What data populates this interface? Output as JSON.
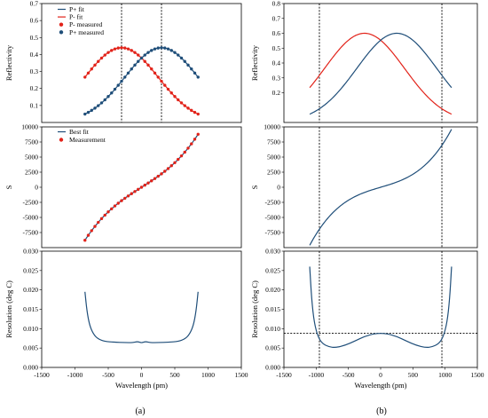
{
  "colors": {
    "blue": "#1F4E79",
    "red": "#E2231A",
    "frame": "#000000"
  },
  "captions": {
    "a": "(a)",
    "b": "(b)"
  },
  "xlabel": "Wavelength (pm)",
  "chart_data": [
    {
      "id": "a1",
      "type": "line",
      "column": "a",
      "row": 0,
      "ylabel": "Reflectivity",
      "xlim": [
        -1500,
        1500
      ],
      "ylim": [
        0,
        0.7
      ],
      "yticks": [
        "0.1",
        "0.2",
        "0.3",
        "0.4",
        "0.5",
        "0.6",
        "0.7"
      ],
      "xticks": [],
      "vlines": [
        -300,
        300
      ],
      "hline": null,
      "legend": [
        "P+ fit",
        "P- fit",
        "P- measured",
        "P+ measured"
      ],
      "series": [
        {
          "name": "P+ fit",
          "color": "blue",
          "kind": "gauss",
          "x_range": [
            -850,
            850
          ],
          "peak": 0.44,
          "center": 300,
          "width": 550
        },
        {
          "name": "P- fit",
          "color": "red",
          "kind": "gauss",
          "x_range": [
            -850,
            850
          ],
          "peak": 0.44,
          "center": -300,
          "width": 550
        },
        {
          "name": "P- measured",
          "color": "red",
          "kind": "gauss",
          "markers": true,
          "x_range": [
            -850,
            850
          ],
          "peak": 0.44,
          "center": -300,
          "width": 550
        },
        {
          "name": "P+ measured",
          "color": "blue",
          "kind": "gauss",
          "markers": true,
          "x_range": [
            -850,
            850
          ],
          "peak": 0.44,
          "center": 300,
          "width": 550
        }
      ]
    },
    {
      "id": "a2",
      "type": "line",
      "column": "a",
      "row": 1,
      "ylabel": "S",
      "xlim": [
        -1500,
        1500
      ],
      "ylim": [
        -10000,
        10000
      ],
      "yticks": [
        "-7500",
        "-5000",
        "-2500",
        "0",
        "2500",
        "5000",
        "7500",
        "10000"
      ],
      "xticks": [],
      "vlines": [],
      "hline": null,
      "legend": [
        "Best fit",
        "Measurement"
      ],
      "series": [
        {
          "name": "Best fit",
          "color": "blue",
          "kind": "cubic",
          "x_range": [
            -850,
            850
          ],
          "a": 7.0,
          "b": 4.61e-06
        },
        {
          "name": "Measurement",
          "color": "red",
          "kind": "cubic",
          "markers": true,
          "x_range": [
            -850,
            850
          ],
          "a": 7.0,
          "b": 4.61e-06
        }
      ]
    },
    {
      "id": "a3",
      "type": "line",
      "column": "a",
      "row": 2,
      "ylabel": "Resolution (deg C)",
      "xlim": [
        -1500,
        1500
      ],
      "ylim": [
        0,
        0.03
      ],
      "yticks": [
        "0.000",
        "0.005",
        "0.010",
        "0.015",
        "0.020",
        "0.025",
        "0.030"
      ],
      "xticks": [
        "-1500",
        "-1000",
        "-500",
        "0",
        "500",
        "1000",
        "1500"
      ],
      "vlines": [],
      "hline": null,
      "legend": [],
      "series": [
        {
          "color": "blue",
          "kind": "points",
          "points": [
            [
              -850,
              0.0195
            ],
            [
              -820,
              0.0145
            ],
            [
              -780,
              0.0108
            ],
            [
              -720,
              0.0085
            ],
            [
              -650,
              0.0073
            ],
            [
              -550,
              0.0067
            ],
            [
              -400,
              0.0065
            ],
            [
              -250,
              0.0064
            ],
            [
              -130,
              0.0064
            ],
            [
              -60,
              0.0067
            ],
            [
              0,
              0.0063
            ],
            [
              60,
              0.0067
            ],
            [
              130,
              0.0064
            ],
            [
              250,
              0.0064
            ],
            [
              400,
              0.0065
            ],
            [
              550,
              0.0067
            ],
            [
              650,
              0.0073
            ],
            [
              720,
              0.0085
            ],
            [
              780,
              0.0108
            ],
            [
              820,
              0.0145
            ],
            [
              850,
              0.0195
            ]
          ]
        }
      ]
    },
    {
      "id": "b1",
      "type": "line",
      "column": "b",
      "row": 0,
      "ylabel": "Reflectivity",
      "xlim": [
        -1500,
        1500
      ],
      "ylim": [
        0,
        0.8
      ],
      "yticks": [
        "0.2",
        "0.3",
        "0.4",
        "0.5",
        "0.6",
        "0.7",
        "0.8"
      ],
      "xticks": [],
      "vlines": [
        -950,
        950
      ],
      "hline": null,
      "legend": [],
      "series": [
        {
          "color": "red",
          "kind": "gauss",
          "x_range": [
            -1100,
            1100
          ],
          "peak": 0.6,
          "center": -250,
          "width": 620
        },
        {
          "color": "blue",
          "kind": "gauss",
          "x_range": [
            -1100,
            1100
          ],
          "peak": 0.6,
          "center": 250,
          "width": 620
        }
      ]
    },
    {
      "id": "b2",
      "type": "line",
      "column": "b",
      "row": 1,
      "ylabel": "S",
      "xlim": [
        -1500,
        1500
      ],
      "ylim": [
        -10000,
        10000
      ],
      "yticks": [
        "-7500",
        "-5000",
        "-2500",
        "0",
        "2500",
        "5000",
        "7500",
        "10000"
      ],
      "xticks": [],
      "vlines": [
        -950,
        950
      ],
      "hline": null,
      "legend": [],
      "series": [
        {
          "color": "blue",
          "kind": "cubic",
          "x_range": [
            -1100,
            1100
          ],
          "a": 3.15,
          "b": 4.62e-06
        }
      ]
    },
    {
      "id": "b3",
      "type": "line",
      "column": "b",
      "row": 2,
      "ylabel": "Resolution (deg C)",
      "xlim": [
        -1500,
        1500
      ],
      "ylim": [
        0,
        0.03
      ],
      "yticks": [
        "0.000",
        "0.005",
        "0.010",
        "0.015",
        "0.020",
        "0.025",
        "0.030"
      ],
      "xticks": [
        "-1500",
        "-1000",
        "-500",
        "0",
        "500",
        "1000",
        "1500"
      ],
      "vlines": [
        -950,
        950
      ],
      "hline": 0.0088,
      "legend": [],
      "series": [
        {
          "color": "blue",
          "kind": "points",
          "points": [
            [
              -1100,
              0.026
            ],
            [
              -1070,
              0.0175
            ],
            [
              -1030,
              0.0115
            ],
            [
              -970,
              0.0078
            ],
            [
              -900,
              0.0061
            ],
            [
              -800,
              0.0053
            ],
            [
              -700,
              0.0051
            ],
            [
              -550,
              0.0057
            ],
            [
              -400,
              0.0068
            ],
            [
              -250,
              0.008
            ],
            [
              -100,
              0.0087
            ],
            [
              0,
              0.0088
            ],
            [
              100,
              0.0087
            ],
            [
              250,
              0.008
            ],
            [
              400,
              0.0068
            ],
            [
              550,
              0.0057
            ],
            [
              700,
              0.0051
            ],
            [
              800,
              0.0053
            ],
            [
              900,
              0.0061
            ],
            [
              970,
              0.0078
            ],
            [
              1030,
              0.0115
            ],
            [
              1070,
              0.0175
            ],
            [
              1100,
              0.026
            ]
          ]
        }
      ]
    }
  ]
}
